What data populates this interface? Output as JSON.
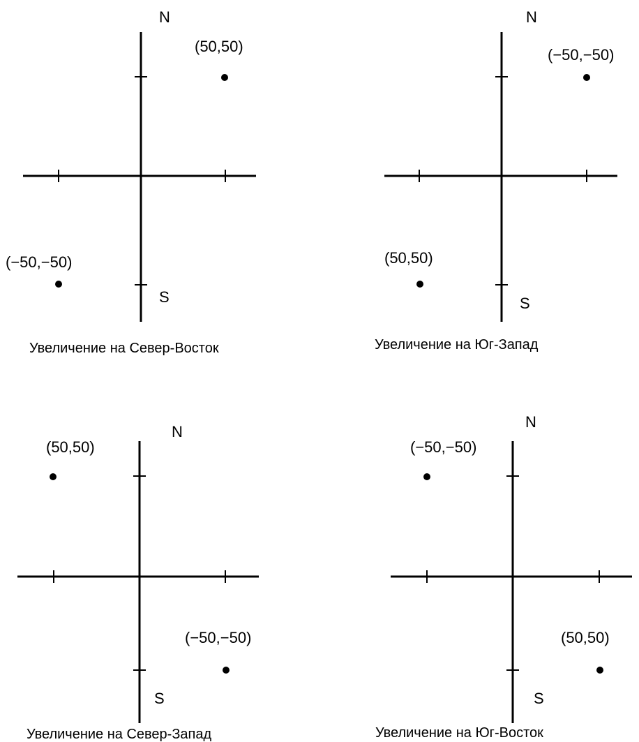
{
  "panels": [
    {
      "caption": "Увеличение на Север-Восток",
      "north_label": "N",
      "south_label": "S",
      "points": [
        {
          "label": "(50,50)",
          "quadrant": "upper-right"
        },
        {
          "label": "(−50,−50)",
          "quadrant": "lower-left"
        }
      ]
    },
    {
      "caption": "Увеличение на Юг-Запад",
      "north_label": "N",
      "south_label": "S",
      "points": [
        {
          "label": "(−50,−50)",
          "quadrant": "upper-right"
        },
        {
          "label": "(50,50)",
          "quadrant": "lower-left"
        }
      ]
    },
    {
      "caption": "Увеличение на Север-Запад",
      "north_label": "N",
      "south_label": "S",
      "points": [
        {
          "label": "(50,50)",
          "quadrant": "upper-left"
        },
        {
          "label": "(−50,−50)",
          "quadrant": "lower-right"
        }
      ]
    },
    {
      "caption": "Увеличение на Юг-Восток",
      "north_label": "N",
      "south_label": "S",
      "points": [
        {
          "label": "(−50,−50)",
          "quadrant": "upper-left"
        },
        {
          "label": "(50,50)",
          "quadrant": "lower-right"
        }
      ]
    }
  ]
}
